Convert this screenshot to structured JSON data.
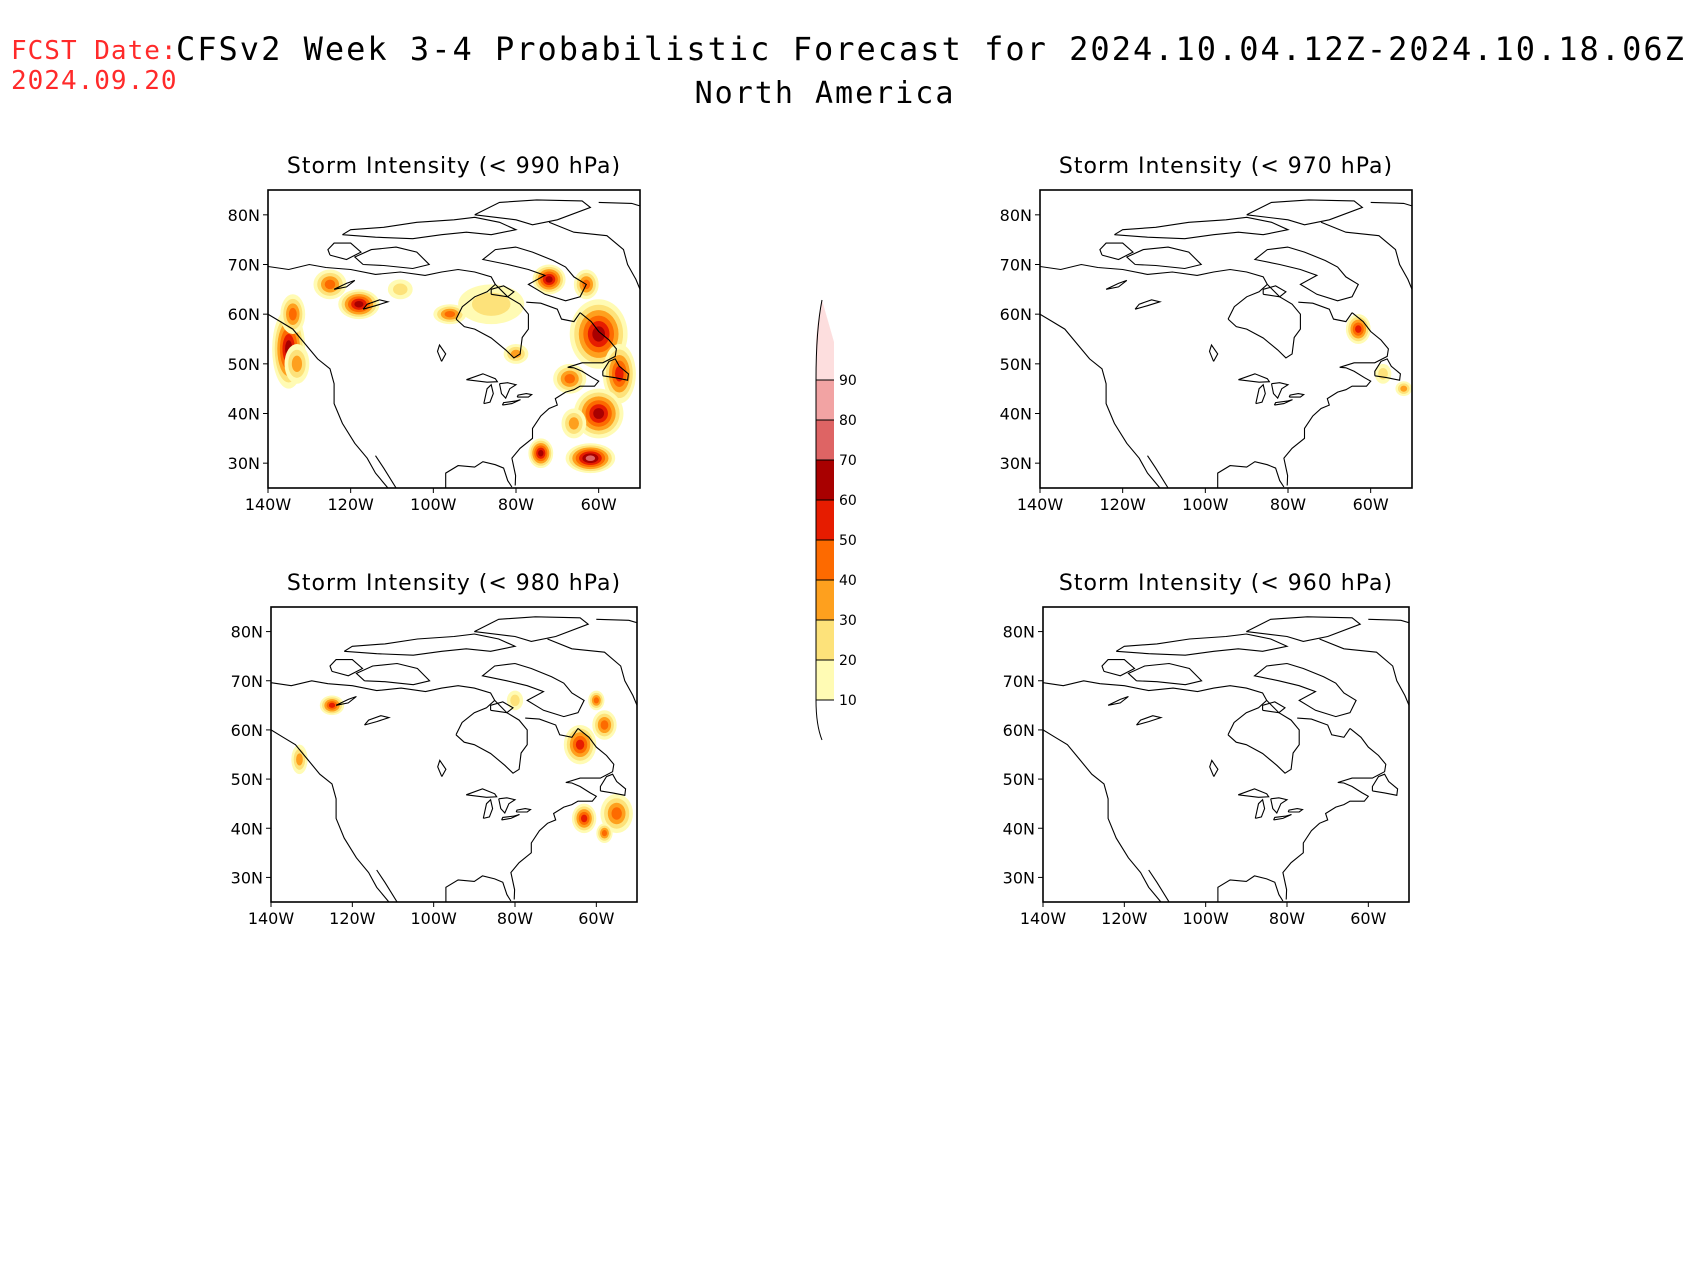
{
  "header": {
    "fcst_label": "FCST Date:",
    "fcst_date": "2024.09.20",
    "title": "CFSv2 Week 3-4 Probabilistic Forecast for 2024.10.04.12Z-2024.10.18.06Z",
    "subtitle": "North America"
  },
  "axes": {
    "lon_range": [
      -140,
      -50
    ],
    "lat_range": [
      25,
      85
    ],
    "lon_ticks": [
      "140W",
      "120W",
      "100W",
      "80W",
      "60W"
    ],
    "lat_ticks": [
      "30N",
      "40N",
      "50N",
      "60N",
      "70N",
      "80N"
    ]
  },
  "colorbar": {
    "levels": [
      "10",
      "20",
      "30",
      "40",
      "50",
      "60",
      "70",
      "80",
      "90"
    ],
    "colors": [
      "#fffbb4",
      "#fde27a",
      "#fea01e",
      "#fd6a00",
      "#e61c00",
      "#a80000",
      "#de6464",
      "#f2a3a3",
      "#fddede"
    ]
  },
  "panels": [
    {
      "id": "p990",
      "title": "Storm Intensity (< 990 hPa)",
      "blobs": [
        {
          "lon": -135,
          "lat": 53,
          "rx": 4,
          "ry": 8,
          "level": 5
        },
        {
          "lon": -134,
          "lat": 60,
          "rx": 3,
          "ry": 4,
          "level": 3
        },
        {
          "lon": -133,
          "lat": 50,
          "rx": 3,
          "ry": 4,
          "level": 2
        },
        {
          "lon": -125,
          "lat": 66,
          "rx": 4,
          "ry": 3,
          "level": 3
        },
        {
          "lon": -118,
          "lat": 62,
          "rx": 5,
          "ry": 3,
          "level": 5
        },
        {
          "lon": -108,
          "lat": 65,
          "rx": 3,
          "ry": 2,
          "level": 1
        },
        {
          "lon": -96,
          "lat": 60,
          "rx": 4,
          "ry": 2,
          "level": 3
        },
        {
          "lon": -86,
          "lat": 62,
          "rx": 8,
          "ry": 4,
          "level": 1
        },
        {
          "lon": -72,
          "lat": 67,
          "rx": 4,
          "ry": 3,
          "level": 5
        },
        {
          "lon": -63,
          "lat": 66,
          "rx": 3,
          "ry": 3,
          "level": 3
        },
        {
          "lon": -60,
          "lat": 56,
          "rx": 7,
          "ry": 7,
          "level": 5
        },
        {
          "lon": -55,
          "lat": 48,
          "rx": 4,
          "ry": 6,
          "level": 4
        },
        {
          "lon": -60,
          "lat": 40,
          "rx": 6,
          "ry": 5,
          "level": 5
        },
        {
          "lon": -67,
          "lat": 47,
          "rx": 4,
          "ry": 3,
          "level": 3
        },
        {
          "lon": -74,
          "lat": 32,
          "rx": 3,
          "ry": 3,
          "level": 5
        },
        {
          "lon": -62,
          "lat": 31,
          "rx": 6,
          "ry": 3,
          "level": 6
        },
        {
          "lon": -66,
          "lat": 38,
          "rx": 3,
          "ry": 3,
          "level": 2
        },
        {
          "lon": -80,
          "lat": 52,
          "rx": 3,
          "ry": 2,
          "level": 2
        }
      ]
    },
    {
      "id": "p970",
      "title": "Storm Intensity (< 970 hPa)",
      "blobs": [
        {
          "lon": -63,
          "lat": 57,
          "rx": 3,
          "ry": 3,
          "level": 4
        },
        {
          "lon": -52,
          "lat": 45,
          "rx": 2,
          "ry": 1.5,
          "level": 2
        },
        {
          "lon": -57,
          "lat": 48,
          "rx": 2,
          "ry": 2,
          "level": 1
        }
      ]
    },
    {
      "id": "p980",
      "title": "Storm Intensity (< 980 hPa)",
      "blobs": [
        {
          "lon": -125,
          "lat": 65,
          "rx": 3,
          "ry": 2,
          "level": 4
        },
        {
          "lon": -133,
          "lat": 54,
          "rx": 2,
          "ry": 3,
          "level": 2
        },
        {
          "lon": -64,
          "lat": 57,
          "rx": 4,
          "ry": 4,
          "level": 4
        },
        {
          "lon": -58,
          "lat": 61,
          "rx": 3,
          "ry": 3,
          "level": 3
        },
        {
          "lon": -60,
          "lat": 66,
          "rx": 2,
          "ry": 2,
          "level": 3
        },
        {
          "lon": -55,
          "lat": 43,
          "rx": 4,
          "ry": 4,
          "level": 3
        },
        {
          "lon": -63,
          "lat": 42,
          "rx": 3,
          "ry": 3,
          "level": 4
        },
        {
          "lon": -58,
          "lat": 39,
          "rx": 2,
          "ry": 2,
          "level": 3
        },
        {
          "lon": -80,
          "lat": 66,
          "rx": 2,
          "ry": 2,
          "level": 1
        }
      ]
    },
    {
      "id": "p960",
      "title": "Storm Intensity (< 960 hPa)",
      "blobs": []
    }
  ]
}
